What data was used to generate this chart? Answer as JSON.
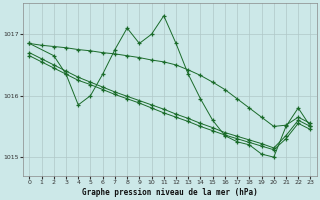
{
  "xlabel": "Graphe pression niveau de la mer (hPa)",
  "background_color": "#cce8e8",
  "grid_color": "#b0c8c8",
  "line_color": "#1a6b2a",
  "ylim": [
    1014.7,
    1017.5
  ],
  "xlim": [
    -0.5,
    23.5
  ],
  "yticks": [
    1015,
    1016,
    1017
  ],
  "xticks": [
    0,
    1,
    2,
    3,
    4,
    5,
    6,
    7,
    8,
    9,
    10,
    11,
    12,
    13,
    14,
    15,
    16,
    17,
    18,
    19,
    20,
    21,
    22,
    23
  ],
  "series": [
    {
      "x": [
        0,
        1,
        2,
        3,
        4,
        5,
        6,
        7,
        8,
        9,
        10,
        11,
        12,
        13,
        14,
        15,
        16,
        17,
        18,
        19,
        20,
        21,
        22,
        23
      ],
      "y": [
        1016.85,
        1016.82,
        1016.8,
        1016.78,
        1016.75,
        1016.73,
        1016.7,
        1016.68,
        1016.65,
        1016.62,
        1016.58,
        1016.55,
        1016.5,
        1016.42,
        1016.33,
        1016.22,
        1016.1,
        1015.95,
        1015.8,
        1015.65,
        1015.5,
        1015.52,
        1015.65,
        1015.55
      ]
    },
    {
      "x": [
        0,
        2,
        3,
        4,
        5,
        6,
        7,
        8,
        9,
        10,
        11,
        12,
        13,
        14,
        15,
        16,
        17,
        18,
        19,
        20,
        21,
        22,
        23
      ],
      "y": [
        1016.85,
        1016.65,
        1016.35,
        1015.85,
        1016.0,
        1016.35,
        1016.75,
        1017.1,
        1016.85,
        1017.0,
        1017.3,
        1016.85,
        1016.35,
        1015.95,
        1015.6,
        1015.35,
        1015.25,
        1015.2,
        1015.05,
        1015.0,
        1015.5,
        1015.8,
        1015.5
      ]
    },
    {
      "x": [
        0,
        1,
        2,
        3,
        4,
        5,
        6,
        7,
        8,
        9,
        10,
        11,
        12,
        13,
        14,
        15,
        16,
        17,
        18,
        19,
        20,
        21,
        22,
        23
      ],
      "y": [
        1016.65,
        1016.55,
        1016.45,
        1016.35,
        1016.25,
        1016.18,
        1016.1,
        1016.02,
        1015.95,
        1015.88,
        1015.8,
        1015.72,
        1015.65,
        1015.58,
        1015.5,
        1015.43,
        1015.36,
        1015.3,
        1015.24,
        1015.18,
        1015.12,
        1015.3,
        1015.55,
        1015.45
      ]
    },
    {
      "x": [
        0,
        1,
        2,
        3,
        4,
        5,
        6,
        7,
        8,
        9,
        10,
        11,
        12,
        13,
        14,
        15,
        16,
        17,
        18,
        19,
        20,
        21,
        22,
        23
      ],
      "y": [
        1016.7,
        1016.6,
        1016.5,
        1016.4,
        1016.3,
        1016.22,
        1016.14,
        1016.06,
        1015.99,
        1015.92,
        1015.85,
        1015.78,
        1015.7,
        1015.63,
        1015.55,
        1015.48,
        1015.4,
        1015.34,
        1015.28,
        1015.22,
        1015.15,
        1015.35,
        1015.6,
        1015.5
      ]
    }
  ]
}
